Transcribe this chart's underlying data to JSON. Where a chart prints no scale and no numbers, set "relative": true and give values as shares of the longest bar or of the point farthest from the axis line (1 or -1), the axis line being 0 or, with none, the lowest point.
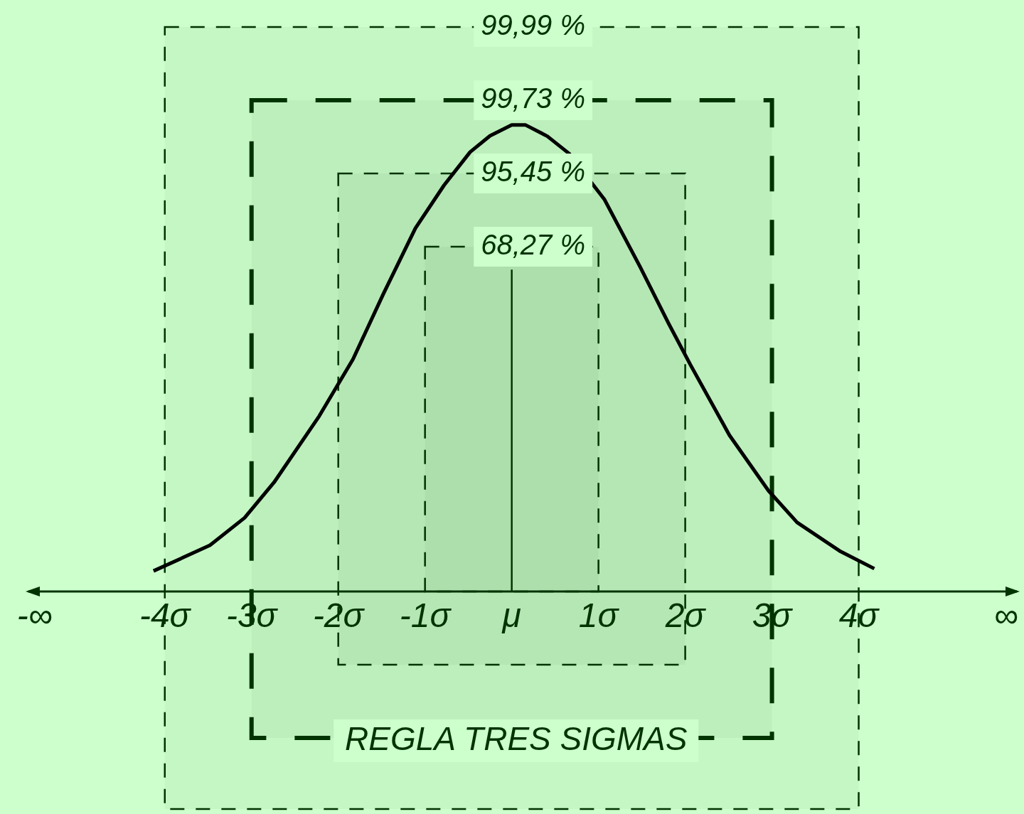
{
  "chart_data": {
    "type": "line",
    "relative": true,
    "annotations": [
      "REGLA TRES SIGMAS"
    ],
    "xlim": [
      -5.9,
      5.9
    ],
    "xticks": [
      {
        "value": -5.5,
        "label": "-∞"
      },
      {
        "value": -4,
        "label": "-4σ"
      },
      {
        "value": -3,
        "label": "-3σ"
      },
      {
        "value": -2,
        "label": "-2σ"
      },
      {
        "value": -1,
        "label": "-1σ"
      },
      {
        "value": 0,
        "label": "μ"
      },
      {
        "value": 1,
        "label": "1σ"
      },
      {
        "value": 2,
        "label": "2σ"
      },
      {
        "value": 3,
        "label": "3σ"
      },
      {
        "value": 4,
        "label": "4σ"
      },
      {
        "value": 5.7,
        "label": "∞"
      }
    ],
    "series": [
      {
        "color": "#000000",
        "x": [
          -4.13,
          -3.48,
          -3.08,
          -2.74,
          -2.22,
          -1.83,
          -1.48,
          -1.11,
          -0.78,
          -0.48,
          -0.25,
          0,
          0.16,
          0.41,
          0.66,
          1.07,
          1.48,
          1.81,
          2.06,
          2.51,
          2.96,
          3.29,
          3.78,
          4.18
        ],
        "values": [
          0.044,
          0.099,
          0.158,
          0.234,
          0.376,
          0.498,
          0.638,
          0.779,
          0.871,
          0.942,
          0.977,
          1,
          1,
          0.976,
          0.939,
          0.84,
          0.696,
          0.574,
          0.486,
          0.335,
          0.216,
          0.148,
          0.087,
          0.049
        ]
      }
    ],
    "bands": [
      {
        "axis": "x",
        "from": -1,
        "to": 1,
        "label": "68,27 %",
        "color": "#003300"
      },
      {
        "axis": "x",
        "from": -2,
        "to": 2,
        "label": "95,45 %",
        "color": "#003300"
      },
      {
        "axis": "x",
        "from": -3,
        "to": 3,
        "label": "99,73 %",
        "color": "#003300"
      },
      {
        "axis": "x",
        "from": -4,
        "to": 4,
        "label": "99,99 %",
        "color": "#003300"
      }
    ],
    "ref_lines": [
      {
        "axis": "x",
        "value": 0,
        "color": "#003300"
      }
    ],
    "grid": false,
    "legend": false,
    "marker": "none",
    "line_style": "solid"
  }
}
